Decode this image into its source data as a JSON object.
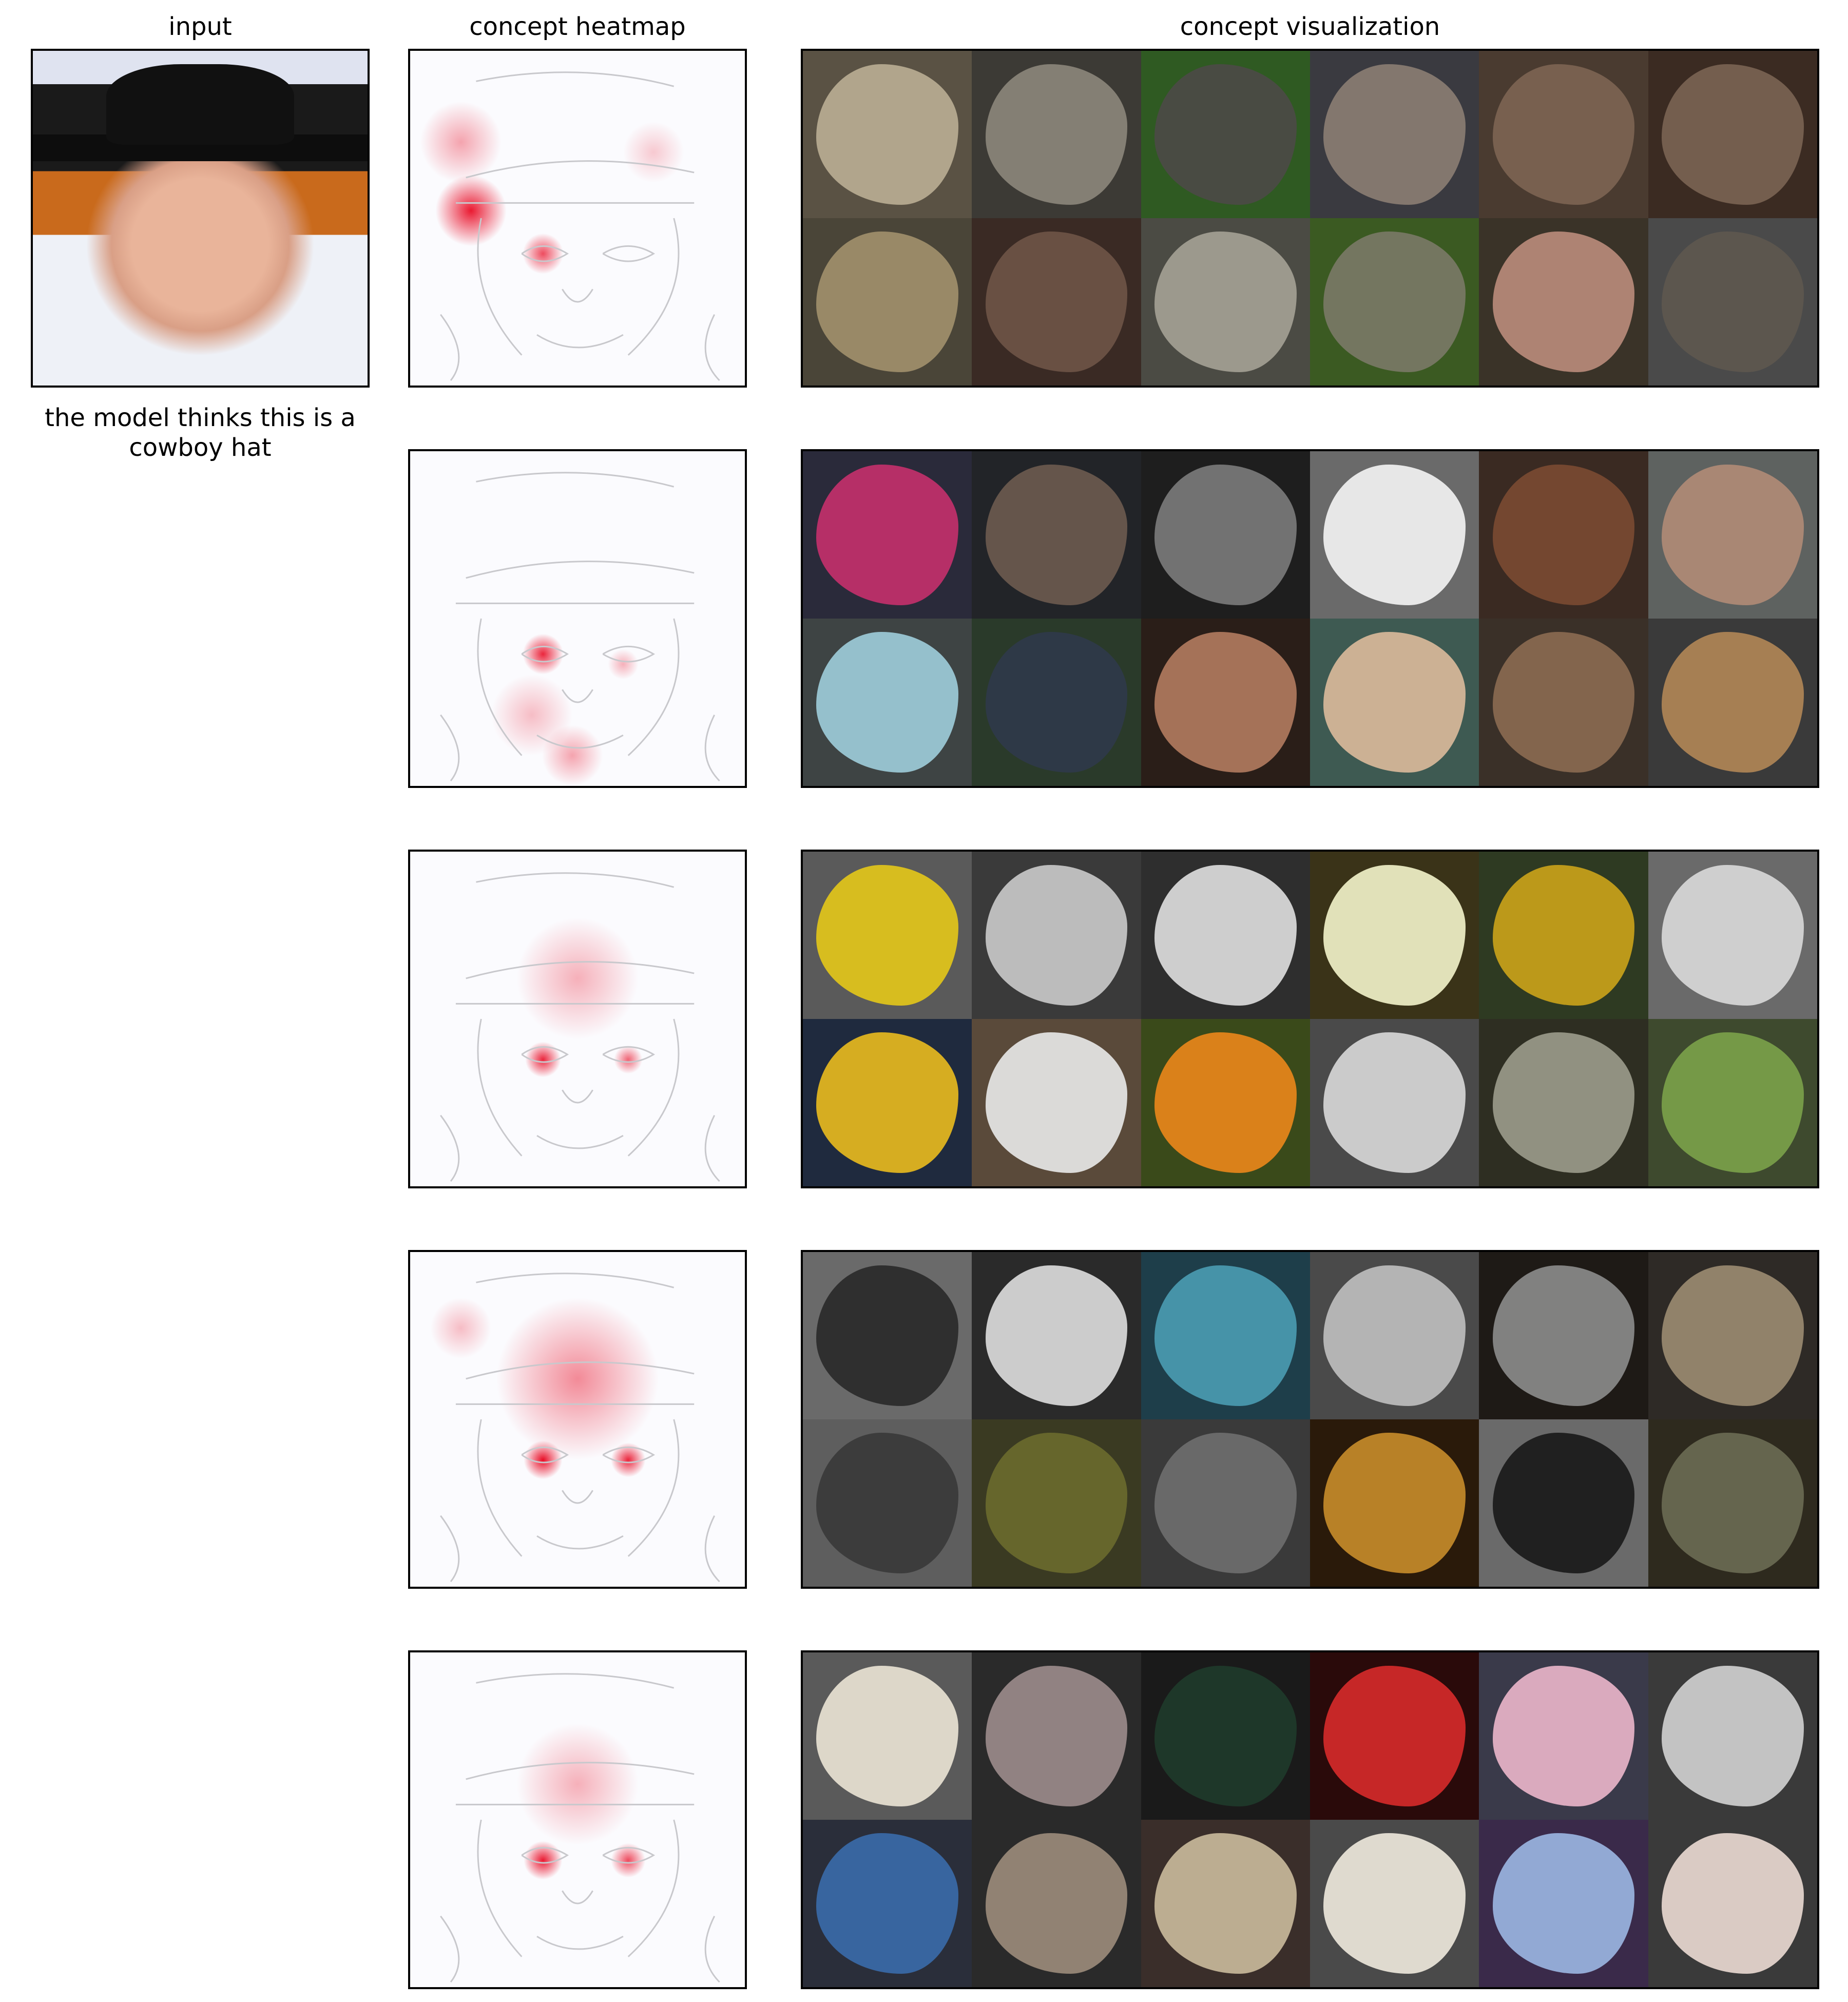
{
  "titles": {
    "input": "input",
    "heatmap": "concept heatmap",
    "visualization": "concept visualization"
  },
  "caption": "the model thinks this is a cowboy hat",
  "concepts": [
    {
      "tiles": [
        {
          "bg": "#5a5244",
          "fg": "#b8ad93"
        },
        {
          "bg": "#3c3a35",
          "fg": "#8b857a"
        },
        {
          "bg": "#2f5a22",
          "fg": "#4c4a46"
        },
        {
          "bg": "#3a3a40",
          "fg": "#8a7d72"
        },
        {
          "bg": "#4a3b30",
          "fg": "#7c6452"
        },
        {
          "bg": "#3b2b22",
          "fg": "#7a6353"
        },
        {
          "bg": "#4a4538",
          "fg": "#a08f6b"
        },
        {
          "bg": "#3a2a24",
          "fg": "#6e5446"
        },
        {
          "bg": "#4b4b44",
          "fg": "#a39f94"
        },
        {
          "bg": "#3b5a22",
          "fg": "#7a7866"
        },
        {
          "bg": "#3a3328",
          "fg": "#b98a7a"
        },
        {
          "bg": "#4a4a4a",
          "fg": "#5d574e"
        }
      ]
    },
    {
      "tiles": [
        {
          "bg": "#2a2a3a",
          "fg": "#c2306b"
        },
        {
          "bg": "#222428",
          "fg": "#6b5a4e"
        },
        {
          "bg": "#1e1e1e",
          "fg": "#7a7a7a"
        },
        {
          "bg": "#6a6a6a",
          "fg": "#f2f2f2"
        },
        {
          "bg": "#3a2a22",
          "fg": "#7a4a32"
        },
        {
          "bg": "#5e6260",
          "fg": "#b08a76"
        },
        {
          "bg": "#3e4444",
          "fg": "#9ccbd8"
        },
        {
          "bg": "#2a3a2a",
          "fg": "#2f3a4a"
        },
        {
          "bg": "#2a1e18",
          "fg": "#b07a5e"
        },
        {
          "bg": "#3e5a52",
          "fg": "#d8b89a"
        },
        {
          "bg": "#3a3028",
          "fg": "#8a6a50"
        },
        {
          "bg": "#3a3a3a",
          "fg": "#b08656"
        }
      ]
    },
    {
      "tiles": [
        {
          "bg": "#5a5a5a",
          "fg": "#e2c51a"
        },
        {
          "bg": "#3a3a3a",
          "fg": "#c8c8c8"
        },
        {
          "bg": "#2e2e2e",
          "fg": "#dcdcdc"
        },
        {
          "bg": "#3a3318",
          "fg": "#f0f0c8"
        },
        {
          "bg": "#2e3a22",
          "fg": "#c9a21a"
        },
        {
          "bg": "#6a6a6a",
          "fg": "#d8d8d8"
        },
        {
          "bg": "#1f2a3e",
          "fg": "#e6b81e"
        },
        {
          "bg": "#5a4a3a",
          "fg": "#e6e6e6"
        },
        {
          "bg": "#3a4a1a",
          "fg": "#e8861a"
        },
        {
          "bg": "#4a4a4a",
          "fg": "#d6d6d6"
        },
        {
          "bg": "#2e2e22",
          "fg": "#9a9a8a"
        },
        {
          "bg": "#3e4a2e",
          "fg": "#7aa04a"
        }
      ]
    },
    {
      "tiles": [
        {
          "bg": "#6a6a6a",
          "fg": "#2a2a2a"
        },
        {
          "bg": "#2a2a2a",
          "fg": "#dadada"
        },
        {
          "bg": "#1e3e4a",
          "fg": "#4a9ab0"
        },
        {
          "bg": "#4a4a4a",
          "fg": "#bdbdbd"
        },
        {
          "bg": "#1e1a16",
          "fg": "#8a8a8a"
        },
        {
          "bg": "#2e2a26",
          "fg": "#9a8a70"
        },
        {
          "bg": "#5e5e5e",
          "fg": "#3a3a3a"
        },
        {
          "bg": "#3a3a22",
          "fg": "#6a6a2e"
        },
        {
          "bg": "#3a3a3a",
          "fg": "#6e6e6e"
        },
        {
          "bg": "#2a1a0a",
          "fg": "#c48a2a"
        },
        {
          "bg": "#6a6a6a",
          "fg": "#1a1a1a"
        },
        {
          "bg": "#2e2a1e",
          "fg": "#6a6a52"
        }
      ]
    },
    {
      "tiles": [
        {
          "bg": "#5a5a5a",
          "fg": "#e8e2d2"
        },
        {
          "bg": "#2a2a2a",
          "fg": "#9a8a8a"
        },
        {
          "bg": "#1a1a1a",
          "fg": "#1e3a2a"
        },
        {
          "bg": "#2a0a0a",
          "fg": "#d42a2a"
        },
        {
          "bg": "#3a3a4a",
          "fg": "#e8b4c8"
        },
        {
          "bg": "#3a3a3a",
          "fg": "#cfcfcf"
        },
        {
          "bg": "#2a2e3a",
          "fg": "#3a6aa8"
        },
        {
          "bg": "#2a2a2a",
          "fg": "#9a8a7a"
        },
        {
          "bg": "#3a2e2a",
          "fg": "#c8b89a"
        },
        {
          "bg": "#4a4a4a",
          "fg": "#ece6da"
        },
        {
          "bg": "#3a2a4a",
          "fg": "#9ab4e0"
        },
        {
          "bg": "#3a3a3a",
          "fg": "#e8d8d0"
        }
      ]
    }
  ],
  "colors": {
    "frame": "#000000",
    "heat_background": "#fbfbfe",
    "heat_red": "#e8001a",
    "sketch": "#c8c8cc"
  }
}
